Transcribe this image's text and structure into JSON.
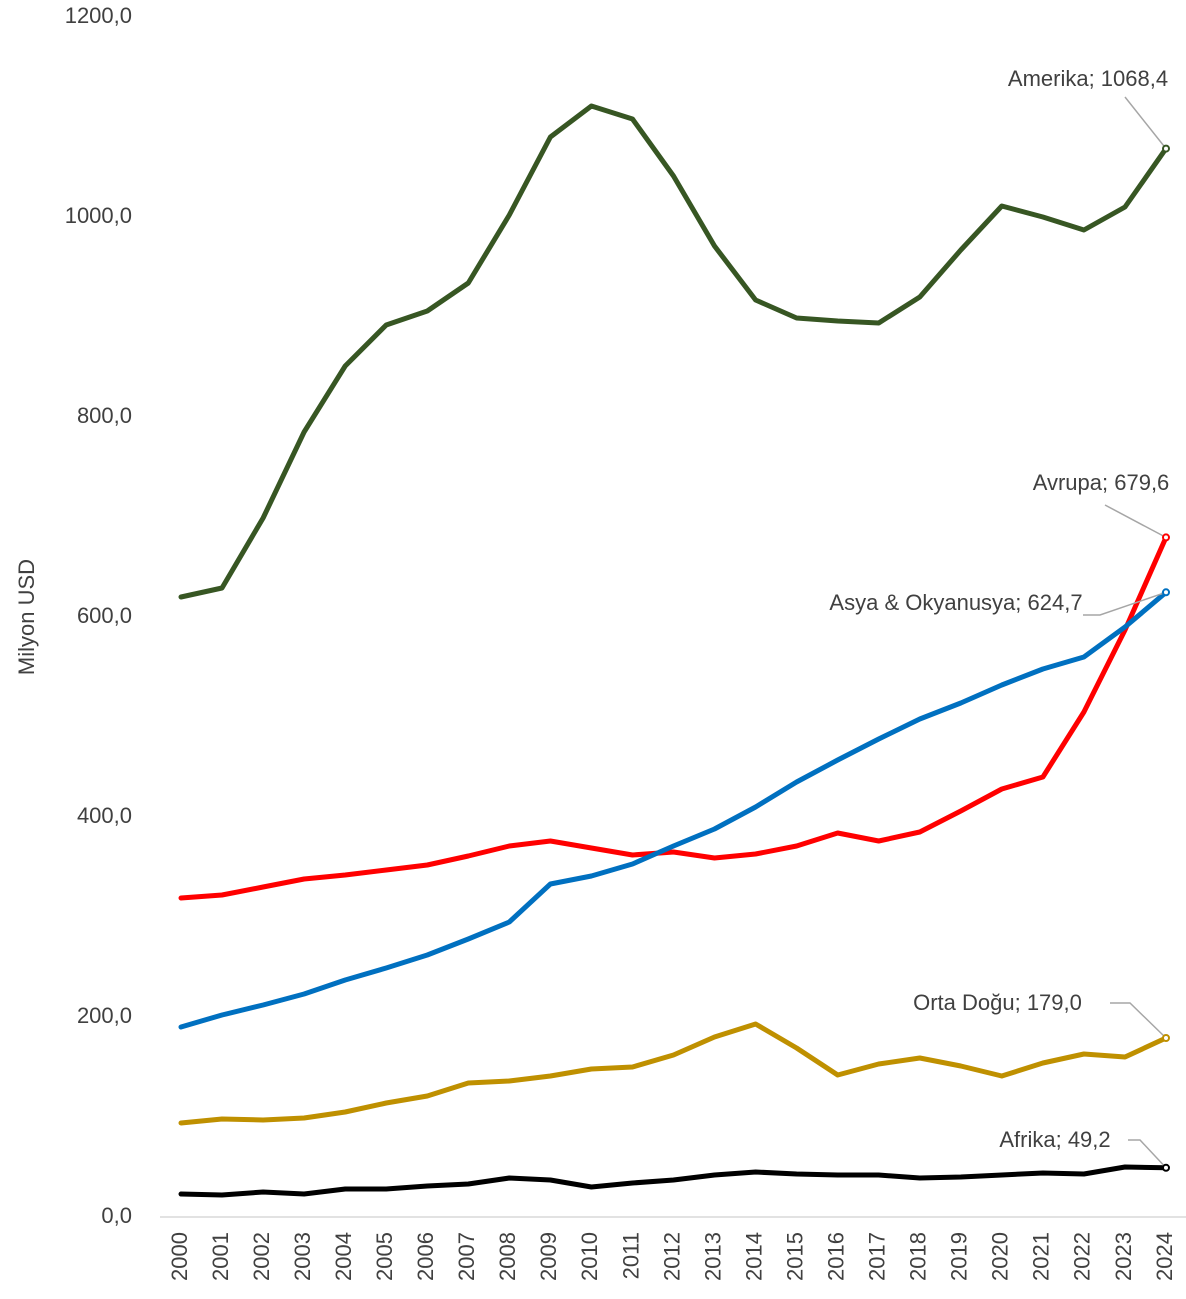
{
  "chart_data": {
    "type": "line",
    "y_label": "Milyon USD",
    "categories": [
      "2000",
      "2001",
      "2002",
      "2003",
      "2004",
      "2005",
      "2006",
      "2007",
      "2008",
      "2009",
      "2010",
      "2011",
      "2012",
      "2013",
      "2014",
      "2015",
      "2016",
      "2017",
      "2018",
      "2019",
      "2020",
      "2021",
      "2022",
      "2023",
      "2024"
    ],
    "ylim": [
      0,
      1200
    ],
    "yticks": [
      {
        "value": 0,
        "label": "0,0"
      },
      {
        "value": 200,
        "label": "200,0"
      },
      {
        "value": 400,
        "label": "400,0"
      },
      {
        "value": 600,
        "label": "600,0"
      },
      {
        "value": 800,
        "label": "800,0"
      },
      {
        "value": 1000,
        "label": "1000,0"
      },
      {
        "value": 1200,
        "label": "1200,0"
      }
    ],
    "grid": false,
    "series": [
      {
        "name": "Amerika",
        "color": "#375623",
        "values": [
          620,
          629,
          699,
          785,
          851,
          892,
          906,
          934,
          1002,
          1080,
          1111,
          1098,
          1041,
          971,
          917,
          899,
          896,
          894,
          920,
          967,
          1011,
          1000,
          987,
          1010,
          1068.4
        ],
        "value_labels": [
          null,
          null,
          null,
          null,
          null,
          null,
          null,
          null,
          null,
          null,
          null,
          null,
          null,
          null,
          null,
          null,
          null,
          null,
          null,
          null,
          null,
          null,
          null,
          null,
          "Amerika; 1068,4"
        ]
      },
      {
        "name": "Avrupa",
        "color": "#ff0000",
        "values": [
          319,
          322,
          330,
          338,
          342,
          347,
          352,
          361,
          371,
          376,
          369,
          362,
          365,
          359,
          363,
          371,
          384,
          376,
          385,
          406,
          428,
          440,
          505,
          587,
          679.6
        ],
        "value_labels": [
          null,
          null,
          null,
          null,
          null,
          null,
          null,
          null,
          null,
          null,
          null,
          null,
          null,
          null,
          null,
          null,
          null,
          null,
          null,
          null,
          null,
          null,
          null,
          null,
          "Avrupa; 679,6"
        ]
      },
      {
        "name": "Asya & Okyanusya",
        "color": "#0070c0",
        "values": [
          190,
          202,
          212,
          223,
          237,
          249,
          262,
          278,
          295,
          333,
          341,
          353,
          371,
          388,
          410,
          435,
          457,
          478,
          498,
          514,
          532,
          548,
          560,
          590,
          624.7
        ],
        "value_labels": [
          null,
          null,
          null,
          null,
          null,
          null,
          null,
          null,
          null,
          null,
          null,
          null,
          null,
          null,
          null,
          null,
          null,
          null,
          null,
          null,
          null,
          null,
          null,
          null,
          "Asya & Okyanusya; 624,7"
        ]
      },
      {
        "name": "Orta Doğu",
        "color": "#bf9000",
        "values": [
          94,
          98,
          97,
          99,
          105,
          114,
          121,
          134,
          136,
          141,
          148,
          150,
          162,
          180,
          193,
          169,
          142,
          153,
          159,
          151,
          141,
          154,
          163,
          160,
          179.0
        ],
        "value_labels": [
          null,
          null,
          null,
          null,
          null,
          null,
          null,
          null,
          null,
          null,
          null,
          null,
          null,
          null,
          null,
          null,
          null,
          null,
          null,
          null,
          null,
          null,
          null,
          null,
          "Orta Doğu; 179,0"
        ]
      },
      {
        "name": "Afrika",
        "color": "#000000",
        "values": [
          23,
          22,
          25,
          23,
          28,
          28,
          31,
          33,
          39,
          37,
          30,
          34,
          37,
          42,
          45,
          43,
          42,
          42,
          39,
          40,
          42,
          44,
          43,
          50,
          49.2
        ],
        "value_labels": [
          null,
          null,
          null,
          null,
          null,
          null,
          null,
          null,
          null,
          null,
          null,
          null,
          null,
          null,
          null,
          null,
          null,
          null,
          null,
          null,
          null,
          null,
          null,
          null,
          "Afrika; 49,2"
        ]
      }
    ]
  }
}
